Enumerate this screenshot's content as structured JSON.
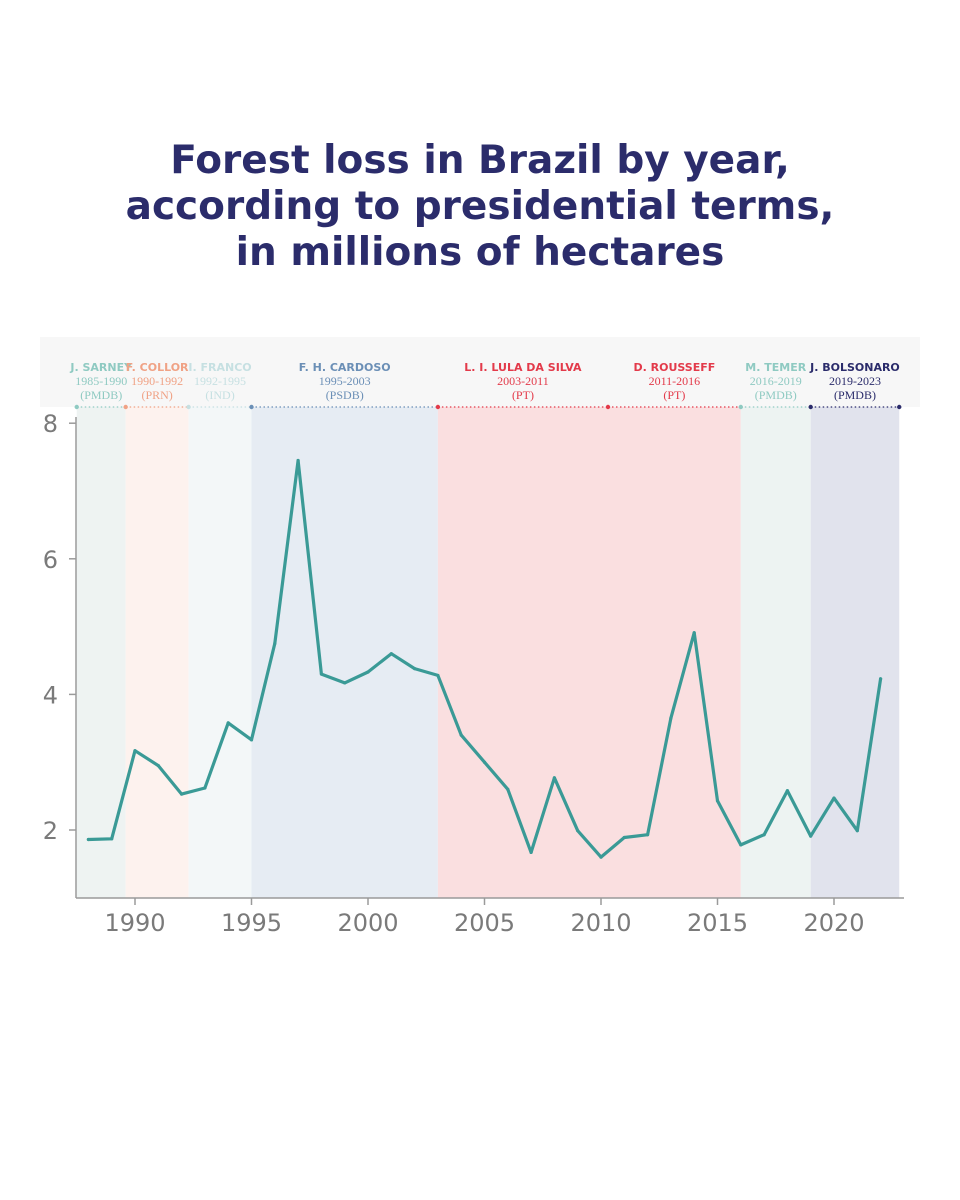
{
  "title": {
    "line1": "Forest loss in Brazil by year,",
    "line2": "according to presidential terms,",
    "line3": "in millions of hectares"
  },
  "chart_data": {
    "type": "line",
    "title": "Forest loss in Brazil by year, according to presidential terms, in millions of hectares",
    "xlabel": "",
    "ylabel": "",
    "xlim": [
      1987.5,
      2022.8
    ],
    "ylim": [
      1,
      8
    ],
    "x_ticks": [
      1990,
      1995,
      2000,
      2005,
      2010,
      2015,
      2020
    ],
    "y_ticks": [
      2,
      4,
      6,
      8
    ],
    "series": [
      {
        "name": "Forest loss",
        "color": "#3a9a96",
        "x": [
          1988,
          1989,
          1990,
          1991,
          1992,
          1993,
          1994,
          1995,
          1996,
          1997,
          1998,
          1999,
          2000,
          2001,
          2002,
          2003,
          2004,
          2005,
          2006,
          2007,
          2008,
          2009,
          2010,
          2011,
          2012,
          2013,
          2014,
          2015,
          2016,
          2017,
          2018,
          2019,
          2020,
          2021,
          2022
        ],
        "values": [
          1.86,
          1.87,
          3.17,
          2.95,
          2.53,
          2.62,
          3.58,
          3.33,
          4.75,
          7.45,
          4.3,
          4.17,
          4.33,
          4.6,
          4.38,
          4.28,
          3.4,
          3.0,
          2.6,
          1.67,
          2.77,
          1.99,
          1.6,
          1.89,
          1.93,
          3.65,
          4.91,
          2.43,
          1.78,
          1.93,
          2.58,
          1.91,
          2.47,
          1.99,
          4.23
        ]
      }
    ],
    "terms": [
      {
        "name": "J. SARNEY",
        "years": "1985-1990",
        "party": "(PMDB)",
        "start": 1987.5,
        "end": 1989.6,
        "fill": "#eef3f2",
        "color": "#8fcac2"
      },
      {
        "name": "F. COLLOR",
        "years": "1990-1992",
        "party": "(PRN)",
        "start": 1989.6,
        "end": 1992.3,
        "fill": "#fdf2ee",
        "color": "#f0a285"
      },
      {
        "name": "I. FRANCO",
        "years": "1992-1995",
        "party": "(IND)",
        "start": 1992.3,
        "end": 1995.0,
        "fill": "#f3f7f8",
        "color": "#c6e0e2"
      },
      {
        "name": "F. H. CARDOSO",
        "years": "1995-2003",
        "party": "(PSDB)",
        "start": 1995.0,
        "end": 2003.0,
        "fill": "#e6ecf3",
        "color": "#6b8fb6"
      },
      {
        "name": "L. I. LULA DA SILVA",
        "years": "2003-2011",
        "party": "(PT)",
        "start": 2003.0,
        "end": 2010.3,
        "fill": "#fadfe0",
        "color": "#e33a4a"
      },
      {
        "name": "D. ROUSSEFF",
        "years": "2011-2016",
        "party": "(PT)",
        "start": 2010.3,
        "end": 2016.0,
        "fill": "#fadfe0",
        "color": "#e33a4a"
      },
      {
        "name": "M. TEMER",
        "years": "2016-2019",
        "party": "(PMDB)",
        "start": 2016.0,
        "end": 2019.0,
        "fill": "#edf3f2",
        "color": "#8fcac2"
      },
      {
        "name": "J. BOLSONARO",
        "years": "2019-2023",
        "party": "(PMDB)",
        "start": 2019.0,
        "end": 2022.8,
        "fill": "#e1e3ed",
        "color": "#2b2c6b"
      }
    ]
  }
}
